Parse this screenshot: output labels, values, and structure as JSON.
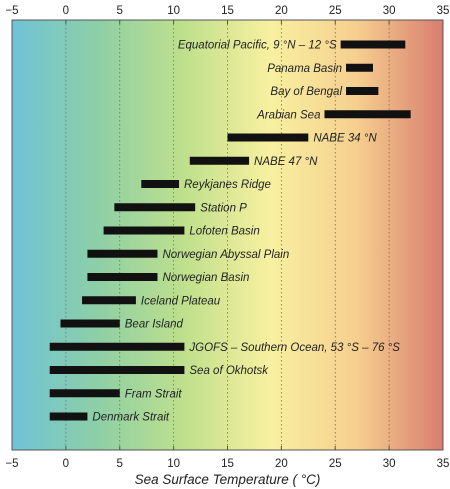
{
  "chart_data": {
    "type": "bar",
    "orientation": "horizontal-range",
    "title": "",
    "xlabel": "Sea Surface Temperature ( °C)",
    "ylabel": "",
    "xlim": [
      -5,
      35
    ],
    "xticks": [
      -5,
      0,
      5,
      10,
      15,
      20,
      25,
      30,
      35
    ],
    "grid": "vertical dotted at each tick",
    "background": "color gradient from cold (blue) to warm (red)",
    "gradient_colors": [
      "#6fc3d6",
      "#8ecfa6",
      "#bfe08c",
      "#f8f0a0",
      "#f6cf8f",
      "#d97d6e"
    ],
    "bar_color": "#111111",
    "ranges": [
      {
        "label": "Equatorial Pacific, 9 °N – 12 °S",
        "min": 25.5,
        "max": 31.5
      },
      {
        "label": "Panama Basin",
        "min": 26.0,
        "max": 28.5
      },
      {
        "label": "Bay of Bengal",
        "min": 26.0,
        "max": 29.0
      },
      {
        "label": "Arabian Sea",
        "min": 24.0,
        "max": 32.0
      },
      {
        "label": "NABE 34 °N",
        "min": 15.0,
        "max": 22.5
      },
      {
        "label": "NABE 47 °N",
        "min": 11.5,
        "max": 17.0
      },
      {
        "label": "Reykjanes Ridge",
        "min": 7.0,
        "max": 10.5
      },
      {
        "label": "Station P",
        "min": 4.5,
        "max": 12.0
      },
      {
        "label": "Lofoten Basin",
        "min": 3.5,
        "max": 11.0
      },
      {
        "label": "Norwegian Abyssal Plain",
        "min": 2.0,
        "max": 8.5
      },
      {
        "label": "Norwegian Basin",
        "min": 2.0,
        "max": 8.5
      },
      {
        "label": "Iceland Plateau",
        "min": 1.5,
        "max": 6.5
      },
      {
        "label": "Bear Island",
        "min": -0.5,
        "max": 5.0
      },
      {
        "label": "JGOFS – Southern Ocean, 53 °S – 76 °S",
        "min": -1.5,
        "max": 11.0
      },
      {
        "label": "Sea of Okhotsk",
        "min": -1.5,
        "max": 11.0
      },
      {
        "label": "Fram Strait",
        "min": -1.5,
        "max": 5.0
      },
      {
        "label": "Denmark Strait",
        "min": -1.5,
        "max": 2.0
      }
    ]
  }
}
